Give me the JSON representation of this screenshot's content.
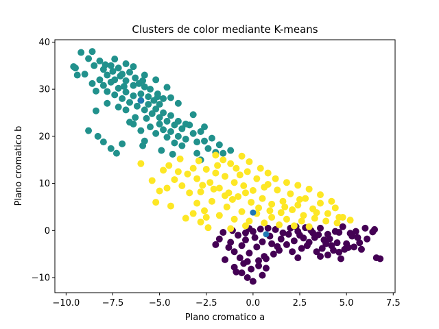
{
  "chart_data": {
    "type": "scatter",
    "title": "Clusters de color mediante K-means",
    "xlabel": "Plano cromatico a",
    "ylabel": "Plano cromatico b",
    "xlim": [
      -10.6,
      7.6
    ],
    "ylim": [
      -13.2,
      40.5
    ],
    "xticks": [
      -10.0,
      -7.5,
      -5.0,
      -2.5,
      0.0,
      2.5,
      5.0,
      7.5
    ],
    "xtick_labels": [
      "−10.0",
      "−7.5",
      "−5.0",
      "−2.5",
      "0.0",
      "2.5",
      "5.0",
      "7.5"
    ],
    "yticks": [
      -10,
      0,
      10,
      20,
      30,
      40
    ],
    "ytick_labels": [
      "−10",
      "0",
      "10",
      "20",
      "30",
      "40"
    ],
    "colors": {
      "cluster_0": "#440154",
      "cluster_1": "#21918c",
      "cluster_2": "#fde725",
      "centroid": "#1f77b4"
    },
    "series": [
      {
        "name": "cluster_0",
        "color": "#440154",
        "points": [
          [
            -1.2,
            -2.5
          ],
          [
            -0.8,
            -1.0
          ],
          [
            -0.4,
            -0.5
          ],
          [
            0.0,
            -0.2
          ],
          [
            0.4,
            0.3
          ],
          [
            0.8,
            0.5
          ],
          [
            1.2,
            0.2
          ],
          [
            1.6,
            -0.5
          ],
          [
            2.0,
            0.5
          ],
          [
            2.4,
            -0.2
          ],
          [
            2.8,
            0.6
          ],
          [
            3.2,
            -0.5
          ],
          [
            3.6,
            0.5
          ],
          [
            4.0,
            -0.8
          ],
          [
            4.4,
            -0.2
          ],
          [
            4.8,
            0.8
          ],
          [
            5.2,
            -0.6
          ],
          [
            5.6,
            -1.5
          ],
          [
            6.0,
            0.5
          ],
          [
            6.4,
            -0.3
          ],
          [
            -1.0,
            -4.5
          ],
          [
            -0.6,
            -3.2
          ],
          [
            -0.2,
            -4.8
          ],
          [
            0.2,
            -3.5
          ],
          [
            0.6,
            -5.5
          ],
          [
            1.0,
            -2.8
          ],
          [
            1.4,
            -4.2
          ],
          [
            1.8,
            -3.0
          ],
          [
            2.2,
            -2.2
          ],
          [
            2.6,
            -3.8
          ],
          [
            3.0,
            -2.5
          ],
          [
            3.4,
            -4.5
          ],
          [
            3.8,
            -2.0
          ],
          [
            4.2,
            -3.2
          ],
          [
            4.6,
            -4.6
          ],
          [
            5.0,
            -2.8
          ],
          [
            5.4,
            -3.5
          ],
          [
            5.8,
            -4.0
          ],
          [
            -0.5,
            -7.0
          ],
          [
            -0.1,
            -8.2
          ],
          [
            0.3,
            -7.5
          ],
          [
            0.7,
            -6.0
          ],
          [
            -0.9,
            -8.8
          ],
          [
            -0.3,
            -10.0
          ],
          [
            0.0,
            -10.8
          ],
          [
            0.5,
            -9.5
          ],
          [
            -1.5,
            -6.2
          ],
          [
            -2.0,
            -3.0
          ],
          [
            -1.8,
            -1.8
          ],
          [
            -0.7,
            -5.8
          ],
          [
            0.9,
            -1.2
          ],
          [
            1.1,
            -5.0
          ],
          [
            1.5,
            -1.8
          ],
          [
            2.1,
            -4.5
          ],
          [
            2.5,
            -1.0
          ],
          [
            2.9,
            -3.2
          ],
          [
            3.3,
            -1.5
          ],
          [
            3.7,
            -3.8
          ],
          [
            4.1,
            -1.8
          ],
          [
            4.5,
            -2.6
          ],
          [
            4.9,
            -4.0
          ],
          [
            5.3,
            -1.2
          ],
          [
            5.7,
            -2.6
          ],
          [
            6.1,
            -1.8
          ],
          [
            6.5,
            0.2
          ],
          [
            6.8,
            -6.0
          ],
          [
            6.6,
            -5.8
          ],
          [
            4.7,
            -6.0
          ],
          [
            4.0,
            -5.2
          ],
          [
            3.6,
            -5.5
          ],
          [
            2.4,
            -5.8
          ],
          [
            -1.3,
            -3.6
          ],
          [
            -0.4,
            -2.0
          ],
          [
            0.1,
            -1.5
          ],
          [
            0.5,
            -2.4
          ],
          [
            1.9,
            -0.8
          ],
          [
            2.7,
            -1.6
          ],
          [
            3.1,
            0.0
          ],
          [
            3.9,
            -2.8
          ],
          [
            4.3,
            -4.2
          ],
          [
            5.1,
            -3.6
          ],
          [
            -1.6,
            -0.4
          ],
          [
            -1.1,
            0.0
          ],
          [
            -0.2,
            0.4
          ],
          [
            0.3,
            -6.4
          ],
          [
            -0.6,
            -9.0
          ],
          [
            -1.0,
            -7.8
          ],
          [
            5.5,
            -0.2
          ],
          [
            0.7,
            -8.0
          ],
          [
            -0.3,
            -6.6
          ],
          [
            1.3,
            -3.4
          ],
          [
            2.3,
            0.8
          ],
          [
            3.5,
            -0.9
          ],
          [
            4.6,
            -0.4
          ]
        ]
      },
      {
        "name": "cluster_1",
        "color": "#21918c",
        "points": [
          [
            -9.2,
            37.8
          ],
          [
            -8.8,
            36.5
          ],
          [
            -9.5,
            34.5
          ],
          [
            -9.0,
            33.2
          ],
          [
            -8.5,
            35.0
          ],
          [
            -8.0,
            34.2
          ],
          [
            -7.8,
            33.0
          ],
          [
            -7.6,
            35.0
          ],
          [
            -7.4,
            32.0
          ],
          [
            -7.2,
            34.5
          ],
          [
            -7.0,
            33.2
          ],
          [
            -6.8,
            31.8
          ],
          [
            -6.6,
            33.6
          ],
          [
            -6.4,
            30.8
          ],
          [
            -6.3,
            32.4
          ],
          [
            -6.1,
            31.2
          ],
          [
            -6.0,
            29.0
          ],
          [
            -5.8,
            30.5
          ],
          [
            -5.6,
            28.4
          ],
          [
            -5.5,
            30.0
          ],
          [
            -5.3,
            27.6
          ],
          [
            -5.1,
            29.0
          ],
          [
            -5.0,
            26.8
          ],
          [
            -4.8,
            28.0
          ],
          [
            -8.2,
            32.0
          ],
          [
            -8.0,
            30.8
          ],
          [
            -7.8,
            29.5
          ],
          [
            -7.6,
            31.5
          ],
          [
            -7.4,
            28.8
          ],
          [
            -7.2,
            30.2
          ],
          [
            -7.0,
            28.0
          ],
          [
            -6.8,
            29.4
          ],
          [
            -6.6,
            27.2
          ],
          [
            -6.4,
            28.6
          ],
          [
            -6.2,
            26.4
          ],
          [
            -6.0,
            27.6
          ],
          [
            -5.8,
            25.6
          ],
          [
            -5.6,
            26.8
          ],
          [
            -5.4,
            24.8
          ],
          [
            -5.2,
            25.8
          ],
          [
            -5.0,
            24.0
          ],
          [
            -4.8,
            25.0
          ],
          [
            -4.6,
            23.2
          ],
          [
            -4.4,
            24.4
          ],
          [
            -4.2,
            22.4
          ],
          [
            -4.0,
            23.2
          ],
          [
            -5.5,
            22.0
          ],
          [
            -5.2,
            20.6
          ],
          [
            -5.0,
            22.6
          ],
          [
            -4.8,
            21.4
          ],
          [
            -4.6,
            19.8
          ],
          [
            -4.4,
            21.0
          ],
          [
            -4.2,
            18.6
          ],
          [
            -4.0,
            20.0
          ],
          [
            -3.8,
            21.6
          ],
          [
            -3.6,
            19.4
          ],
          [
            -3.4,
            22.4
          ],
          [
            -3.2,
            20.6
          ],
          [
            -3.0,
            18.8
          ],
          [
            -2.8,
            21.0
          ],
          [
            -2.6,
            19.0
          ],
          [
            -2.4,
            17.4
          ],
          [
            -2.2,
            19.6
          ],
          [
            -2.0,
            16.6
          ],
          [
            -1.8,
            18.2
          ],
          [
            -1.6,
            16.4
          ],
          [
            -1.2,
            17.0
          ],
          [
            -3.0,
            16.4
          ],
          [
            -2.8,
            15.0
          ],
          [
            -3.2,
            24.6
          ],
          [
            -3.6,
            22.6
          ],
          [
            -6.0,
            21.2
          ],
          [
            -6.4,
            22.6
          ],
          [
            -7.0,
            18.4
          ],
          [
            -7.3,
            16.4
          ],
          [
            -7.6,
            17.4
          ],
          [
            -8.0,
            18.8
          ],
          [
            -8.3,
            20.0
          ],
          [
            -8.8,
            21.2
          ],
          [
            -8.4,
            25.4
          ],
          [
            -9.4,
            33.0
          ],
          [
            -9.6,
            34.8
          ],
          [
            -8.6,
            38.0
          ],
          [
            -8.2,
            36.0
          ],
          [
            -7.4,
            36.4
          ],
          [
            -6.8,
            35.4
          ],
          [
            -6.4,
            34.8
          ],
          [
            -5.8,
            33.0
          ],
          [
            -5.2,
            32.0
          ],
          [
            -4.6,
            30.4
          ],
          [
            -4.4,
            28.2
          ],
          [
            -4.0,
            27.0
          ],
          [
            -6.8,
            25.6
          ],
          [
            -7.2,
            26.2
          ],
          [
            -7.8,
            27.0
          ],
          [
            -8.4,
            29.6
          ],
          [
            -8.6,
            31.2
          ],
          [
            -5.8,
            19.0
          ],
          [
            -5.9,
            18.0
          ],
          [
            -4.9,
            17.0
          ],
          [
            -4.3,
            16.2
          ],
          [
            -6.3,
            24.0
          ],
          [
            -6.6,
            23.0
          ],
          [
            -5.7,
            23.8
          ],
          [
            -5.1,
            28.4
          ],
          [
            -5.9,
            31.8
          ],
          [
            -6.9,
            30.6
          ],
          [
            -7.1,
            32.8
          ],
          [
            -7.5,
            33.8
          ],
          [
            -7.9,
            35.2
          ],
          [
            -3.8,
            18.0
          ],
          [
            -2.6,
            22.0
          ]
        ]
      },
      {
        "name": "cluster_2",
        "color": "#fde725",
        "points": [
          [
            -6.0,
            14.2
          ],
          [
            -4.8,
            12.8
          ],
          [
            -4.5,
            13.8
          ],
          [
            -4.2,
            10.8
          ],
          [
            -4.0,
            12.5
          ],
          [
            -3.8,
            9.5
          ],
          [
            -3.5,
            12.0
          ],
          [
            -3.2,
            13.2
          ],
          [
            -3.0,
            11.0
          ],
          [
            -2.8,
            8.2
          ],
          [
            -2.5,
            13.0
          ],
          [
            -2.3,
            10.2
          ],
          [
            -2.0,
            12.2
          ],
          [
            -1.8,
            9.0
          ],
          [
            -1.5,
            11.5
          ],
          [
            -1.3,
            8.0
          ],
          [
            -1.0,
            10.2
          ],
          [
            -0.8,
            7.2
          ],
          [
            -0.5,
            9.5
          ],
          [
            -0.3,
            12.5
          ],
          [
            0.0,
            8.5
          ],
          [
            0.2,
            11.0
          ],
          [
            0.5,
            6.8
          ],
          [
            0.8,
            9.8
          ],
          [
            1.0,
            5.6
          ],
          [
            1.3,
            8.6
          ],
          [
            1.6,
            6.2
          ],
          [
            2.0,
            7.8
          ],
          [
            2.4,
            5.4
          ],
          [
            2.8,
            6.8
          ],
          [
            3.2,
            4.6
          ],
          [
            3.6,
            5.8
          ],
          [
            4.0,
            3.6
          ],
          [
            4.4,
            4.8
          ],
          [
            4.8,
            2.8
          ],
          [
            5.2,
            2.2
          ],
          [
            -3.4,
            8.0
          ],
          [
            -3.0,
            5.8
          ],
          [
            -2.6,
            4.2
          ],
          [
            -2.2,
            6.2
          ],
          [
            -1.8,
            3.2
          ],
          [
            -1.4,
            5.0
          ],
          [
            -1.0,
            2.4
          ],
          [
            -0.6,
            4.0
          ],
          [
            -0.2,
            2.0
          ],
          [
            0.2,
            3.6
          ],
          [
            0.6,
            1.6
          ],
          [
            1.0,
            2.8
          ],
          [
            1.4,
            1.2
          ],
          [
            1.8,
            2.4
          ],
          [
            2.2,
            1.0
          ],
          [
            2.6,
            2.0
          ],
          [
            3.0,
            0.8
          ],
          [
            -4.4,
            5.2
          ],
          [
            -3.6,
            2.6
          ],
          [
            -2.8,
            1.8
          ],
          [
            -2.4,
            0.6
          ],
          [
            -1.6,
            15.0
          ],
          [
            -1.2,
            14.2
          ],
          [
            -0.6,
            15.8
          ],
          [
            -0.2,
            14.6
          ],
          [
            0.4,
            13.2
          ],
          [
            0.8,
            12.2
          ],
          [
            1.2,
            11.0
          ],
          [
            1.8,
            10.2
          ],
          [
            2.4,
            9.6
          ],
          [
            3.0,
            8.8
          ],
          [
            3.6,
            7.6
          ],
          [
            4.2,
            6.2
          ],
          [
            -5.4,
            10.6
          ],
          [
            -5.0,
            8.4
          ],
          [
            -4.6,
            9.0
          ],
          [
            -2.0,
            16.0
          ],
          [
            -0.9,
            13.2
          ],
          [
            -1.9,
            13.8
          ],
          [
            -2.9,
            14.8
          ],
          [
            -3.9,
            15.2
          ],
          [
            -0.1,
            6.0
          ],
          [
            0.3,
            4.8
          ],
          [
            0.9,
            4.2
          ],
          [
            1.5,
            3.8
          ],
          [
            2.1,
            4.4
          ],
          [
            2.7,
            3.2
          ],
          [
            3.3,
            2.6
          ],
          [
            3.9,
            2.0
          ],
          [
            4.5,
            1.6
          ],
          [
            -1.1,
            6.6
          ],
          [
            -1.5,
            7.4
          ],
          [
            -2.1,
            8.8
          ],
          [
            -2.7,
            9.6
          ],
          [
            -0.4,
            1.0
          ],
          [
            -3.2,
            3.6
          ],
          [
            -1.2,
            0.4
          ],
          [
            -0.7,
            11.8
          ],
          [
            -0.4,
            8.0
          ],
          [
            0.6,
            9.2
          ],
          [
            4.6,
            2.8
          ],
          [
            3.4,
            3.8
          ],
          [
            2.5,
            6.6
          ],
          [
            1.7,
            5.0
          ],
          [
            -5.2,
            6.0
          ],
          [
            -2.5,
            2.8
          ]
        ]
      }
    ],
    "centroids": [
      [
        -6.0,
        27.6
      ],
      [
        0.0,
        3.8
      ],
      [
        0.7,
        -0.8
      ]
    ]
  }
}
